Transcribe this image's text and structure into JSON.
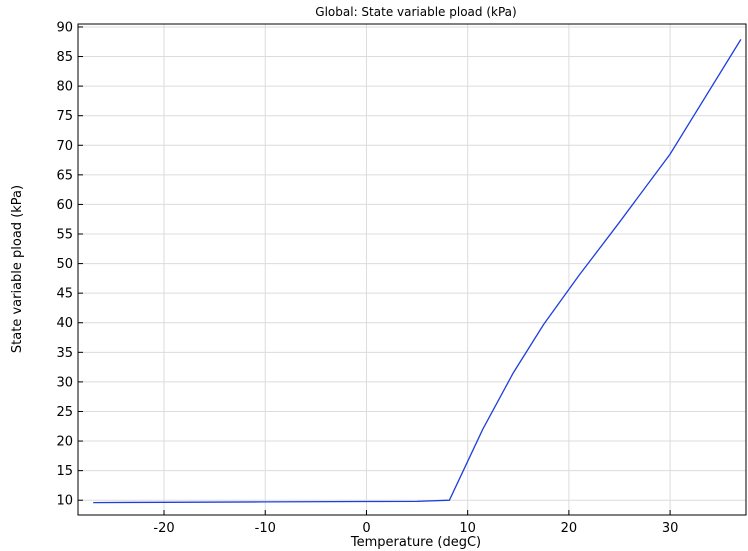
{
  "chart_data": {
    "type": "line",
    "title": "Global: State variable pload (kPa)",
    "xlabel": "Temperature (degC)",
    "ylabel": "State variable pload (kPa)",
    "xlim": [
      -28.5,
      37.5
    ],
    "ylim": [
      7.5,
      90.5
    ],
    "xticks": [
      -20,
      -10,
      0,
      10,
      20,
      30
    ],
    "xtick_labels": [
      "-20",
      "-10",
      "0",
      "10",
      "20",
      "30"
    ],
    "yticks": [
      10,
      15,
      20,
      25,
      30,
      35,
      40,
      45,
      50,
      55,
      60,
      65,
      70,
      75,
      80,
      85,
      90
    ],
    "ytick_labels": [
      "10",
      "15",
      "20",
      "25",
      "30",
      "35",
      "40",
      "45",
      "50",
      "55",
      "60",
      "65",
      "70",
      "75",
      "80",
      "85",
      "90"
    ],
    "grid": true,
    "legend": "none",
    "series": [
      {
        "color": "#1f3fdc",
        "x": [
          -27,
          -20,
          -10,
          0,
          5,
          8.2,
          11.5,
          14.5,
          17.5,
          21,
          25,
          30,
          37
        ],
        "y": [
          9.6,
          9.65,
          9.72,
          9.78,
          9.8,
          10.0,
          22.0,
          31.5,
          39.7,
          48.0,
          57.0,
          68.5,
          87.9
        ]
      }
    ]
  }
}
